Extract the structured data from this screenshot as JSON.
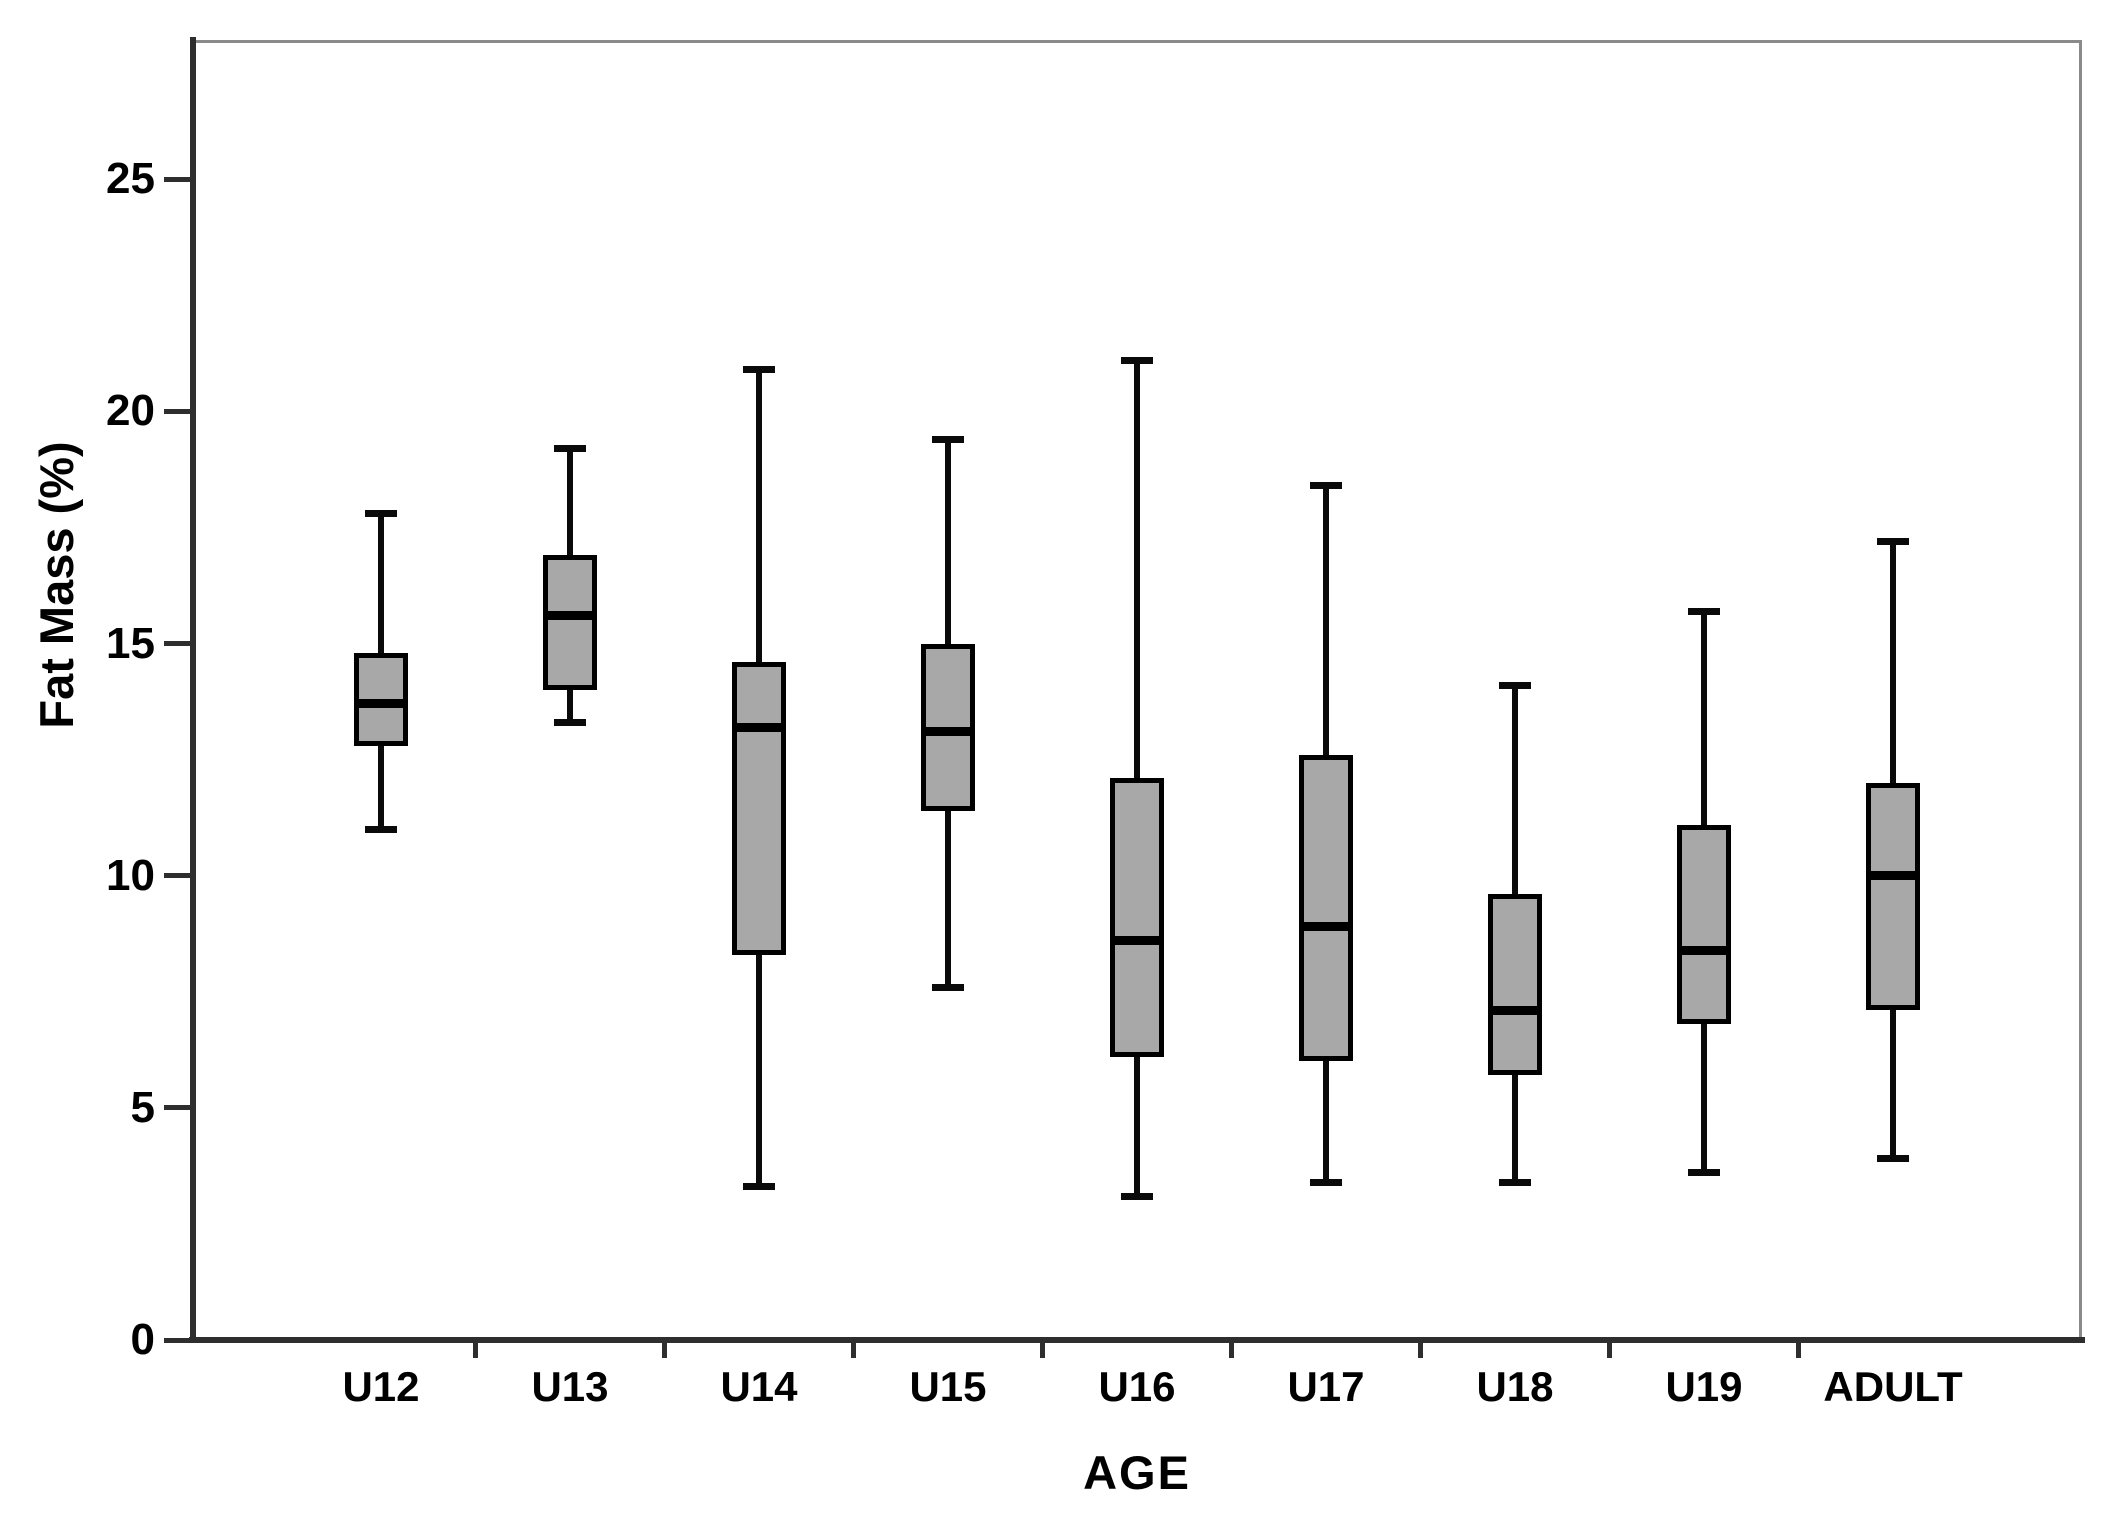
{
  "chart_data": {
    "type": "boxplot",
    "title": "",
    "xlabel": "AGE",
    "ylabel": "Fat Mass (%)",
    "ylim": [
      0,
      28
    ],
    "grid": false,
    "legend": null,
    "y_ticks": [
      {
        "value": 0,
        "label": "0"
      },
      {
        "value": 5,
        "label": "5"
      },
      {
        "value": 10,
        "label": "10"
      },
      {
        "value": 15,
        "label": "15"
      },
      {
        "value": 20,
        "label": "20"
      },
      {
        "value": 25,
        "label": "25"
      }
    ],
    "categories": [
      "U12",
      "U13",
      "U14",
      "U15",
      "U16",
      "U17",
      "U18",
      "U19",
      "ADULT"
    ],
    "series": [
      {
        "category": "U12",
        "min": 11.0,
        "q1": 12.8,
        "median": 13.7,
        "q3": 14.8,
        "max": 17.8
      },
      {
        "category": "U13",
        "min": 13.3,
        "q1": 14.0,
        "median": 15.6,
        "q3": 16.9,
        "max": 19.2
      },
      {
        "category": "U14",
        "min": 3.3,
        "q1": 8.3,
        "median": 13.2,
        "q3": 14.6,
        "max": 20.9
      },
      {
        "category": "U15",
        "min": 7.6,
        "q1": 11.4,
        "median": 13.1,
        "q3": 15.0,
        "max": 19.4
      },
      {
        "category": "U16",
        "min": 3.1,
        "q1": 6.1,
        "median": 8.6,
        "q3": 12.1,
        "max": 21.1
      },
      {
        "category": "U17",
        "min": 3.4,
        "q1": 6.0,
        "median": 8.9,
        "q3": 12.6,
        "max": 18.4
      },
      {
        "category": "U18",
        "min": 3.4,
        "q1": 5.7,
        "median": 7.1,
        "q3": 9.6,
        "max": 14.1
      },
      {
        "category": "U19",
        "min": 3.6,
        "q1": 6.8,
        "median": 8.4,
        "q3": 11.1,
        "max": 15.7
      },
      {
        "category": "ADULT",
        "min": 3.9,
        "q1": 7.1,
        "median": 10.0,
        "q3": 12.0,
        "max": 17.2
      }
    ],
    "colors": {
      "box_fill": "#a8a8a8",
      "box_border": "#000000",
      "median": "#000000",
      "whisker": "#0a0a0a",
      "axis": "#2e2e2e",
      "frame": "#8a8a8a",
      "text": "#000000",
      "background": "#ffffff"
    }
  }
}
